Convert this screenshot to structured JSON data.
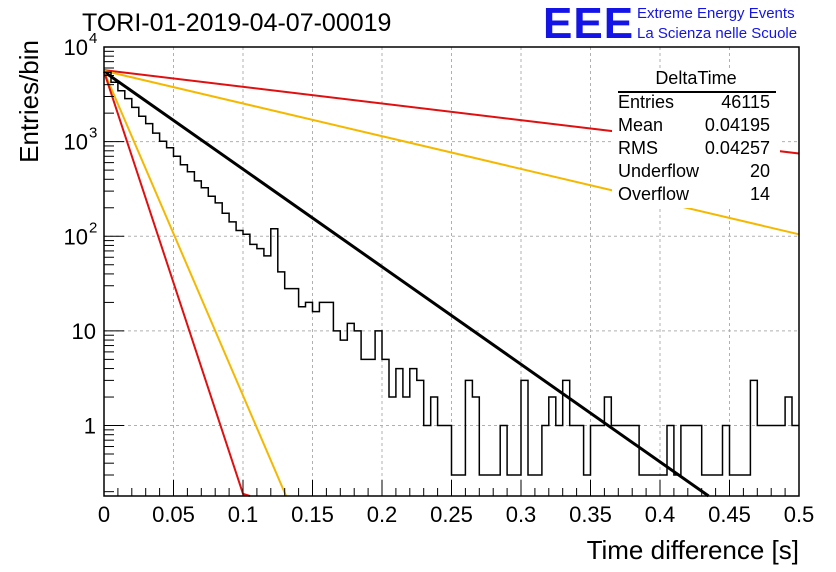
{
  "header": {
    "run_title": "TORI-01-2019-04-07-00019",
    "logo_text": "EEE",
    "logo_line1": "Extreme Energy Events",
    "logo_line2": "La Scienza nelle Scuole"
  },
  "stats": {
    "title": "DeltaTime",
    "rows": [
      {
        "key": "Entries",
        "value": "46115"
      },
      {
        "key": "Mean",
        "value": "0.04195"
      },
      {
        "key": "RMS",
        "value": "0.04257"
      },
      {
        "key": "Underflow",
        "value": "20"
      },
      {
        "key": "Overflow",
        "value": "14"
      }
    ]
  },
  "colors": {
    "histogram": "#000000",
    "fit": "#000000",
    "red": "#e01010",
    "orange": "#f5b800",
    "grid": "#b0b0b0"
  },
  "chart_data": {
    "type": "line",
    "title": "TORI-01-2019-04-07-00019",
    "xlabel": "Time difference [s]",
    "ylabel": "Entries/bin",
    "xlim": [
      0,
      0.5
    ],
    "ylim": [
      0.18,
      10000
    ],
    "yscale": "log",
    "grid": true,
    "x_ticks": [
      "0",
      "0.05",
      "0.1",
      "0.15",
      "0.2",
      "0.25",
      "0.3",
      "0.35",
      "0.4",
      "0.45",
      "0.5"
    ],
    "y_ticks": [
      {
        "value": 1,
        "label": "1"
      },
      {
        "value": 10,
        "label": "10"
      },
      {
        "value": 100,
        "label": "10",
        "exp": "2"
      },
      {
        "value": 1000,
        "label": "10",
        "exp": "3"
      },
      {
        "value": 10000,
        "label": "10",
        "exp": "4"
      }
    ],
    "histogram": {
      "name": "DeltaTime",
      "bin_width": 0.005,
      "counts": [
        5400,
        4250,
        3450,
        2850,
        2300,
        1850,
        1550,
        1230,
        1010,
        860,
        700,
        570,
        480,
        385,
        325,
        265,
        225,
        175,
        142,
        115,
        105,
        82,
        74,
        62,
        120,
        42,
        28,
        28,
        18,
        20,
        16,
        20,
        20,
        10,
        8,
        12,
        10,
        5,
        5,
        10,
        5,
        2,
        4,
        2,
        4,
        3,
        1,
        2,
        1,
        1,
        0.3,
        0.3,
        3,
        2,
        0.3,
        0.3,
        0.3,
        1,
        0.3,
        0.3,
        3,
        0.3,
        0.3,
        1,
        2,
        1,
        3,
        1,
        1,
        0.3,
        1,
        1,
        2,
        1,
        1,
        1,
        1,
        0.3,
        0.3,
        0.3,
        0.3,
        1,
        0.3,
        1,
        1,
        1,
        0.3,
        0.3,
        0.3,
        1,
        0.3,
        0.3,
        0.3,
        3,
        1,
        1,
        1,
        1,
        2,
        1
      ]
    },
    "series": [
      {
        "color": "#000000",
        "x": [
          0,
          0.435
        ],
        "y": [
          5500,
          0.18
        ]
      },
      {
        "color": "#e01010",
        "x": [
          0,
          0.5
        ],
        "y": [
          5700,
          750
        ]
      },
      {
        "color": "#f5b800",
        "x": [
          0,
          0.5
        ],
        "y": [
          5600,
          105
        ]
      },
      {
        "color": "#f5b800",
        "x": [
          0,
          0.131
        ],
        "y": [
          5500,
          0.18
        ]
      },
      {
        "color": "#e01010",
        "x": [
          0,
          0.1,
          0.105
        ],
        "y": [
          5500,
          0.19,
          0.18
        ]
      }
    ]
  }
}
